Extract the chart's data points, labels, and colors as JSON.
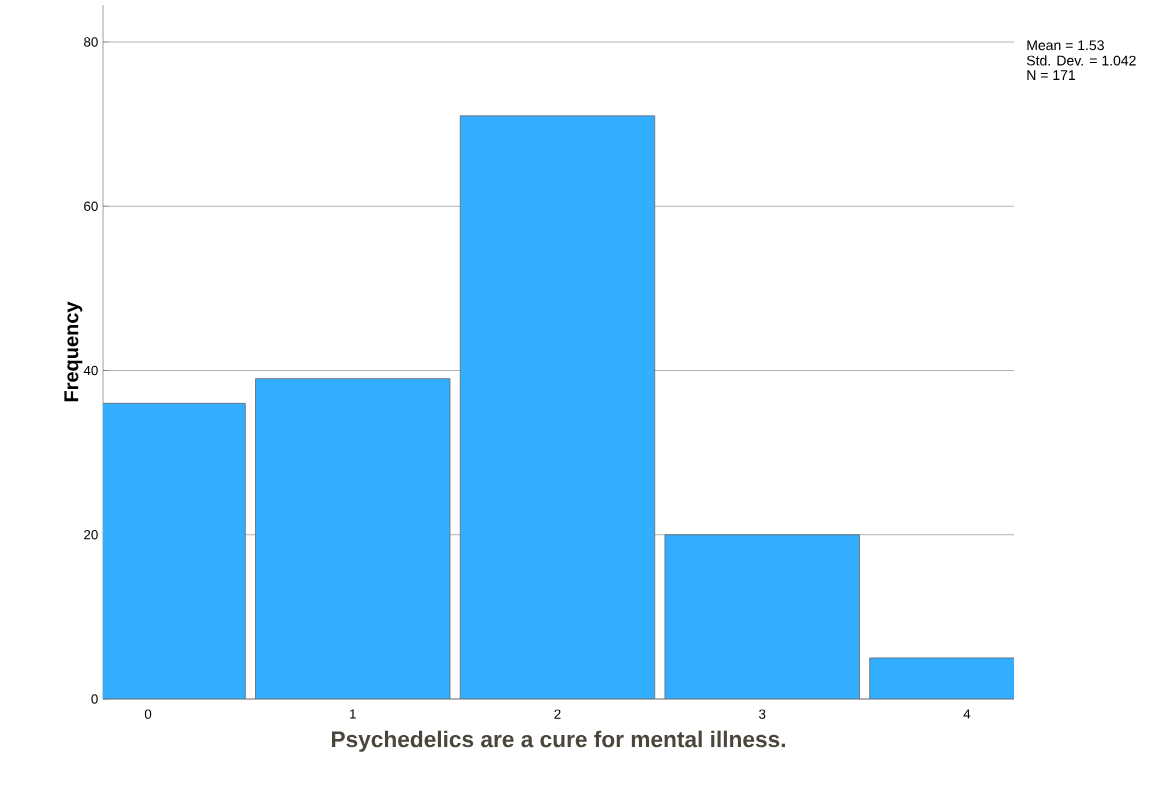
{
  "chart_data": {
    "type": "bar",
    "xlabel": "Psychedelics are a cure for mental illness.",
    "ylabel": "Frequency",
    "categories": [
      "0",
      "1",
      "2",
      "3",
      "4"
    ],
    "values": [
      36,
      39,
      71,
      20,
      5
    ],
    "color": "#33adff",
    "ylim": [
      0,
      84.5
    ],
    "yticks": [
      0,
      20,
      40,
      60,
      80
    ],
    "grid": "y",
    "annotations": [
      "Mean = 1.53",
      "Std. Dev. = 1.042",
      "N = 171"
    ]
  }
}
